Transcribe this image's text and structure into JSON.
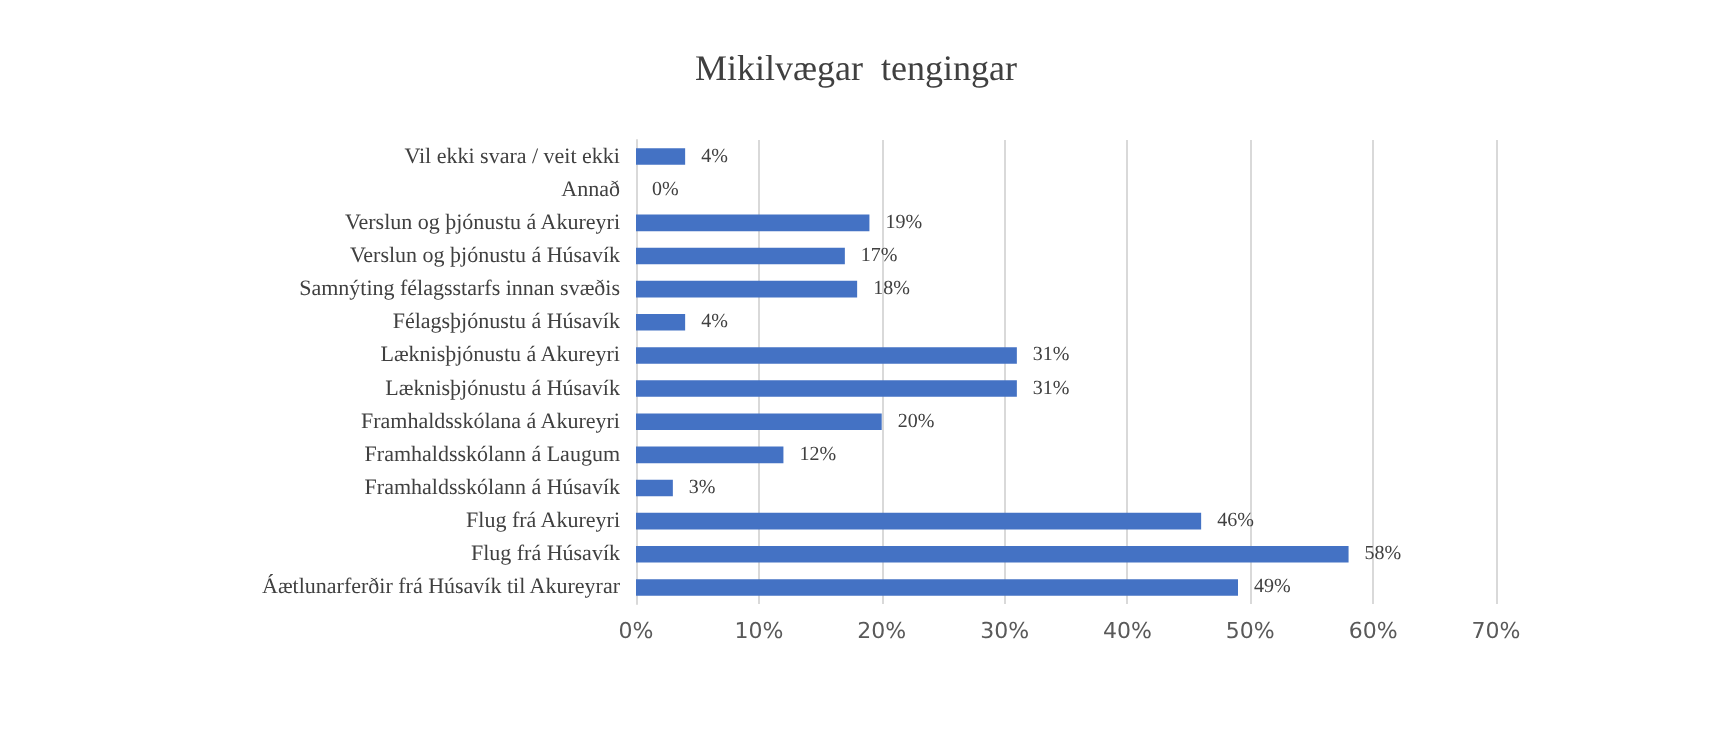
{
  "chart_data": {
    "type": "bar",
    "orientation": "horizontal",
    "title": "Mikilvægar  tengingar",
    "categories": [
      "Vil ekki svara / veit ekki",
      "Annað",
      "Verslun og þjónustu á Akureyri",
      "Verslun og þjónustu á Húsavík",
      "Samnýting félagsstarfs innan svæðis",
      "Félagsþjónustu á Húsavík",
      "Læknisþjónustu á Akureyri",
      "Læknisþjónustu á Húsavík",
      "Framhaldsskólana á Akureyri",
      "Framhaldsskólann á Laugum",
      "Framhaldsskólann á Húsavík",
      "Flug frá Akureyri",
      "Flug frá Húsavík",
      "Áætlunarferðir frá Húsavík til Akureyrar"
    ],
    "values": [
      4,
      0,
      19,
      17,
      18,
      4,
      31,
      31,
      20,
      12,
      3,
      46,
      58,
      49
    ],
    "value_labels": [
      "4%",
      "0%",
      "19%",
      "17%",
      "18%",
      "4%",
      "31%",
      "31%",
      "20%",
      "12%",
      "3%",
      "46%",
      "58%",
      "49%"
    ],
    "color": "#4472c4",
    "xlim": [
      0,
      70
    ],
    "xticks": [
      {
        "value": 0,
        "label": "0%"
      },
      {
        "value": 10,
        "label": "10%"
      },
      {
        "value": 20,
        "label": "20%"
      },
      {
        "value": 30,
        "label": "30%"
      },
      {
        "value": 40,
        "label": "40%"
      },
      {
        "value": 50,
        "label": "50%"
      },
      {
        "value": 60,
        "label": "60%"
      },
      {
        "value": 70,
        "label": "70%"
      }
    ],
    "grid": "x"
  }
}
